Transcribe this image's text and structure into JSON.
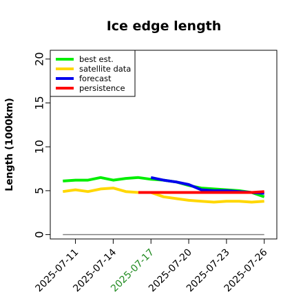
{
  "chart_data": {
    "type": "line",
    "title": "Ice edge length",
    "ylabel": "Length (1000km)",
    "xlabel": "",
    "ylim": [
      -0.5,
      21
    ],
    "yticks": [
      0,
      5,
      10,
      15,
      20
    ],
    "xlim": [
      "2025-07-09",
      "2025-07-27"
    ],
    "xticks": [
      "2025-07-11",
      "2025-07-14",
      "2025-07-17",
      "2025-07-20",
      "2025-07-23",
      "2025-07-26"
    ],
    "highlight_tick": "2025-07-17",
    "highlight_color": "#228b22",
    "legend_position": "top-left",
    "grid": false,
    "reference_line": {
      "y": 0,
      "from": "2025-07-10",
      "to": "2025-07-26",
      "color": "#808080"
    },
    "series": [
      {
        "name": "best est.",
        "color": "#00ee00",
        "x": [
          "2025-07-10",
          "2025-07-11",
          "2025-07-12",
          "2025-07-13",
          "2025-07-14",
          "2025-07-15",
          "2025-07-16",
          "2025-07-17",
          "2025-07-18",
          "2025-07-19",
          "2025-07-20",
          "2025-07-21",
          "2025-07-22",
          "2025-07-23",
          "2025-07-24",
          "2025-07-25",
          "2025-07-26"
        ],
        "y": [
          6.1,
          6.2,
          6.2,
          6.5,
          6.2,
          6.4,
          6.5,
          6.3,
          6.2,
          6.0,
          5.6,
          5.3,
          5.2,
          5.1,
          5.0,
          4.8,
          4.3
        ]
      },
      {
        "name": "satellite data",
        "color": "#ffd700",
        "x": [
          "2025-07-10",
          "2025-07-11",
          "2025-07-12",
          "2025-07-13",
          "2025-07-14",
          "2025-07-15",
          "2025-07-16",
          "2025-07-17",
          "2025-07-18",
          "2025-07-19",
          "2025-07-20",
          "2025-07-21",
          "2025-07-22",
          "2025-07-23",
          "2025-07-24",
          "2025-07-25",
          "2025-07-26"
        ],
        "y": [
          4.9,
          5.1,
          4.9,
          5.2,
          5.3,
          4.9,
          4.8,
          4.8,
          4.3,
          4.1,
          3.9,
          3.8,
          3.7,
          3.8,
          3.8,
          3.7,
          3.8
        ]
      },
      {
        "name": "forecast",
        "color": "#0000ee",
        "x": [
          "2025-07-17",
          "2025-07-18",
          "2025-07-19",
          "2025-07-20",
          "2025-07-21",
          "2025-07-22",
          "2025-07-23",
          "2025-07-24",
          "2025-07-25",
          "2025-07-26"
        ],
        "y": [
          6.5,
          6.2,
          6.0,
          5.7,
          5.1,
          5.0,
          5.0,
          4.9,
          4.8,
          4.7
        ]
      },
      {
        "name": "persistence",
        "color": "#ff0000",
        "x": [
          "2025-07-16",
          "2025-07-17",
          "2025-07-18",
          "2025-07-19",
          "2025-07-20",
          "2025-07-21",
          "2025-07-22",
          "2025-07-23",
          "2025-07-24",
          "2025-07-25",
          "2025-07-26"
        ],
        "y": [
          4.8,
          4.8,
          4.8,
          4.8,
          4.8,
          4.8,
          4.8,
          4.8,
          4.8,
          4.8,
          4.9
        ]
      }
    ]
  }
}
